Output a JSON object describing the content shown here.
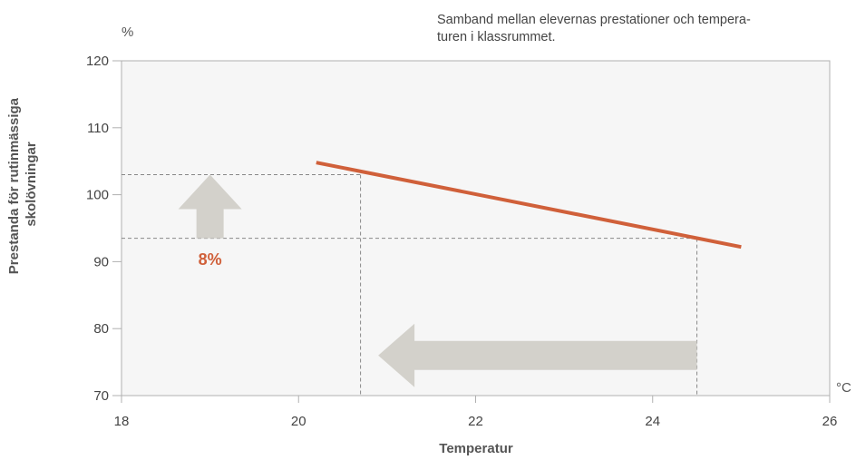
{
  "chart_data": {
    "type": "line",
    "title": "Samband mellan elevernas prestationer och temperaturen i klassrummet.",
    "title_lines": [
      "Samband mellan elevernas prestationer och tempera-",
      "turen i klassrummet."
    ],
    "xlabel": "Temperatur",
    "ylabel_lines": [
      "Prestanda för rutinmässiga",
      "skolövningar"
    ],
    "x_unit": "°C",
    "y_unit": "%",
    "xlim": [
      18,
      26
    ],
    "ylim": [
      70,
      120
    ],
    "x_ticks": [
      18,
      20,
      22,
      24,
      26
    ],
    "y_ticks": [
      70,
      80,
      90,
      100,
      110,
      120
    ],
    "grid": false,
    "series": [
      {
        "x": [
          20.2,
          25.0
        ],
        "y": [
          104.8,
          92.2
        ]
      }
    ],
    "reference_lines": [
      {
        "x": 20.7,
        "y": 103.0
      },
      {
        "x": 24.5,
        "y": 93.5
      }
    ],
    "annotation": {
      "text": "8%",
      "x": 19.0,
      "y": 89.5
    },
    "arrows": [
      {
        "direction": "up",
        "x": 19.0,
        "from_y": 93.5,
        "to_y": 103.0
      },
      {
        "direction": "left",
        "y": 76.0,
        "from_x": 24.5,
        "to_x": 20.9
      }
    ],
    "colors": {
      "line": "#d0603a",
      "annotation": "#d0603a",
      "arrow": "#d3d1cb",
      "plot_background": "#f6f6f6",
      "frame": "#b0b0b0",
      "dashed": "#888888"
    }
  }
}
